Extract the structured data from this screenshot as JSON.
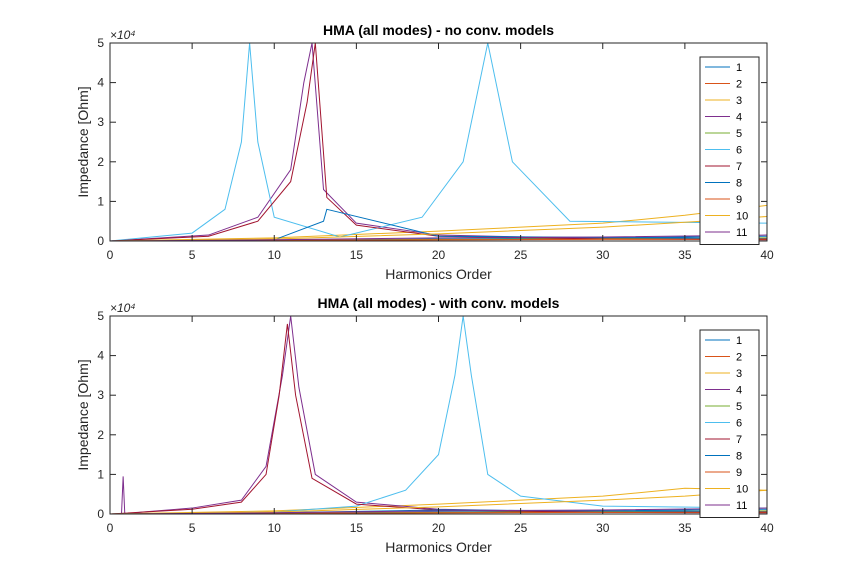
{
  "chart_data": [
    {
      "type": "line",
      "title": "HMA (all modes) - no conv. models",
      "xlabel": "Harmonics Order",
      "ylabel": "Impedance [Ohm]",
      "xlim": [
        0,
        40
      ],
      "ylim": [
        0,
        5
      ],
      "y_multiplier_label": "×10⁴",
      "x_ticks": [
        0,
        5,
        10,
        15,
        20,
        25,
        30,
        35,
        40
      ],
      "y_ticks": [
        0,
        1,
        2,
        3,
        4,
        5
      ],
      "legend_position": "top-right",
      "series": [
        {
          "name": "1",
          "color": "#0072BD",
          "x": [
            0,
            10,
            20,
            30,
            40
          ],
          "y": [
            0,
            0.02,
            0.05,
            0.08,
            0.12
          ]
        },
        {
          "name": "2",
          "color": "#D95319",
          "x": [
            0,
            10,
            20,
            30,
            40
          ],
          "y": [
            0,
            0.01,
            0.03,
            0.05,
            0.07
          ]
        },
        {
          "name": "3",
          "color": "#EDB120",
          "x": [
            0,
            10,
            20,
            30,
            35,
            40
          ],
          "y": [
            0,
            0.08,
            0.25,
            0.45,
            0.65,
            0.9
          ]
        },
        {
          "name": "4",
          "color": "#7E2F8E",
          "x": [
            0,
            6,
            9,
            11,
            11.8,
            12.3,
            13,
            15,
            20,
            30,
            40
          ],
          "y": [
            0,
            0.15,
            0.6,
            1.8,
            4,
            5,
            1.3,
            0.45,
            0.15,
            0.06,
            0.04
          ]
        },
        {
          "name": "5",
          "color": "#77AC30",
          "x": [
            0,
            10,
            20,
            30,
            40
          ],
          "y": [
            0,
            0.02,
            0.04,
            0.06,
            0.08
          ]
        },
        {
          "name": "6",
          "color": "#4DBEEE",
          "x": [
            0,
            5,
            7,
            8,
            8.5,
            9,
            10,
            14,
            19,
            21.5,
            23,
            24.5,
            28,
            40
          ],
          "y": [
            0,
            0.2,
            0.8,
            2.5,
            5,
            2.5,
            0.6,
            0.1,
            0.6,
            2,
            5,
            2,
            0.5,
            0.45
          ]
        },
        {
          "name": "7",
          "color": "#A2142F",
          "x": [
            0,
            6,
            9,
            11,
            12,
            12.5,
            13.2,
            15,
            20,
            30,
            40
          ],
          "y": [
            0,
            0.12,
            0.5,
            1.5,
            3.5,
            5,
            1.1,
            0.4,
            0.12,
            0.05,
            0.03
          ]
        },
        {
          "name": "8",
          "color": "#0072BD",
          "x": [
            0,
            10,
            13,
            13.2,
            20,
            40
          ],
          "y": [
            0,
            0.03,
            0.5,
            0.8,
            0.12,
            0.06
          ]
        },
        {
          "name": "9",
          "color": "#D95319",
          "x": [
            0,
            10,
            20,
            30,
            40
          ],
          "y": [
            0,
            0.02,
            0.03,
            0.04,
            0.05
          ]
        },
        {
          "name": "10",
          "color": "#EDB120",
          "x": [
            0,
            10,
            20,
            30,
            36,
            40
          ],
          "y": [
            0,
            0.05,
            0.18,
            0.35,
            0.5,
            0.62
          ]
        },
        {
          "name": "11",
          "color": "#7E2F8E",
          "x": [
            0,
            10,
            20,
            30,
            40
          ],
          "y": [
            0,
            0.03,
            0.08,
            0.1,
            0.15
          ]
        }
      ]
    },
    {
      "type": "line",
      "title": "HMA (all modes) - with conv. models",
      "xlabel": "Harmonics Order",
      "ylabel": "Impedance [Ohm]",
      "xlim": [
        0,
        40
      ],
      "ylim": [
        0,
        5
      ],
      "y_multiplier_label": "×10⁴",
      "x_ticks": [
        0,
        5,
        10,
        15,
        20,
        25,
        30,
        35,
        40
      ],
      "y_ticks": [
        0,
        1,
        2,
        3,
        4,
        5
      ],
      "legend_position": "top-right",
      "series": [
        {
          "name": "1",
          "color": "#0072BD",
          "x": [
            0,
            10,
            20,
            30,
            40
          ],
          "y": [
            0,
            0.02,
            0.05,
            0.08,
            0.12
          ]
        },
        {
          "name": "2",
          "color": "#D95319",
          "x": [
            0,
            10,
            20,
            30,
            40
          ],
          "y": [
            0,
            0.01,
            0.03,
            0.05,
            0.07
          ]
        },
        {
          "name": "3",
          "color": "#EDB120",
          "x": [
            0,
            10,
            20,
            30,
            35,
            40
          ],
          "y": [
            0,
            0.08,
            0.25,
            0.45,
            0.65,
            0.6
          ]
        },
        {
          "name": "4",
          "color": "#7E2F8E",
          "x": [
            0,
            0.7,
            0.8,
            0.9,
            2,
            5,
            8,
            9.5,
            10.5,
            11,
            11.5,
            12.5,
            15,
            20,
            30,
            40
          ],
          "y": [
            0,
            0,
            0.95,
            0,
            0.05,
            0.15,
            0.35,
            1.2,
            3.5,
            5,
            3.2,
            1,
            0.3,
            0.12,
            0.05,
            0.04
          ]
        },
        {
          "name": "5",
          "color": "#77AC30",
          "x": [
            0,
            10,
            20,
            30,
            40
          ],
          "y": [
            0,
            0.02,
            0.04,
            0.06,
            0.08
          ]
        },
        {
          "name": "6",
          "color": "#4DBEEE",
          "x": [
            0,
            5,
            10,
            15,
            18,
            20,
            21,
            21.5,
            22,
            23,
            25,
            30,
            40
          ],
          "y": [
            0,
            0.02,
            0.05,
            0.2,
            0.6,
            1.5,
            3.5,
            5,
            3.5,
            1,
            0.45,
            0.2,
            0.15
          ]
        },
        {
          "name": "7",
          "color": "#A2142F",
          "x": [
            0,
            5,
            8,
            9.5,
            10.3,
            10.8,
            11.3,
            12.3,
            15,
            20,
            30,
            40
          ],
          "y": [
            0,
            0.12,
            0.3,
            1,
            3,
            4.8,
            3,
            0.9,
            0.25,
            0.1,
            0.04,
            0.03
          ]
        },
        {
          "name": "8",
          "color": "#0072BD",
          "x": [
            0,
            10,
            20,
            30,
            40
          ],
          "y": [
            0,
            0.03,
            0.1,
            0.08,
            0.06
          ]
        },
        {
          "name": "9",
          "color": "#D95319",
          "x": [
            0,
            10,
            20,
            30,
            40
          ],
          "y": [
            0,
            0.02,
            0.03,
            0.04,
            0.05
          ]
        },
        {
          "name": "10",
          "color": "#EDB120",
          "x": [
            0,
            10,
            20,
            30,
            35,
            40
          ],
          "y": [
            0,
            0.05,
            0.18,
            0.35,
            0.45,
            0.6
          ]
        },
        {
          "name": "11",
          "color": "#7E2F8E",
          "x": [
            0,
            10,
            20,
            30,
            40
          ],
          "y": [
            0,
            0.03,
            0.08,
            0.1,
            0.15
          ]
        }
      ]
    }
  ]
}
